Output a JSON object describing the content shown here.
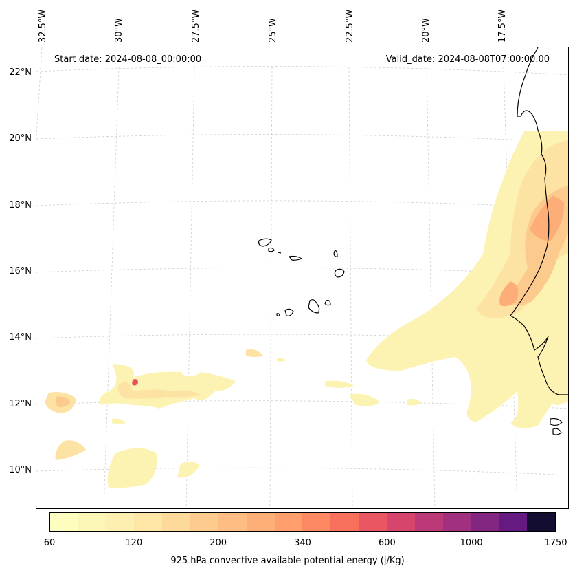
{
  "map": {
    "start_date": "Start date: 2024-08-08_00:00:00",
    "valid_date": "Valid_date: 2024-08-08T07:00:00.00",
    "lon_labels": [
      "32.5°W",
      "30°W",
      "27.5°W",
      "25°W",
      "22.5°W",
      "20°W",
      "17.5°W"
    ],
    "lat_labels": [
      "22°N",
      "20°N",
      "18°N",
      "16°N",
      "14°N",
      "12°N",
      "10°N"
    ],
    "colors": {
      "coastline": "#000000",
      "gridline": "#cccccc"
    }
  },
  "colorbar": {
    "title": "925 hPa convective available potential energy (j/Kg)",
    "tick_labels": [
      "60",
      "120",
      "200",
      "340",
      "600",
      "1000",
      "1750"
    ],
    "colors": [
      "#fcfdbf",
      "#fcf6b6",
      "#fdefaf",
      "#fde6a6",
      "#fdd99a",
      "#fecb8e",
      "#febd82",
      "#feaf77",
      "#fe9f6d",
      "#fc8961",
      "#f7705c",
      "#ea5661",
      "#d6456c",
      "#bc3978",
      "#a1307e",
      "#832681",
      "#641a80",
      "#120d31"
    ]
  },
  "chart_data": {
    "type": "heatmap",
    "title": "",
    "variable": "925 hPa convective available potential energy (j/Kg)",
    "levels": [
      60,
      120,
      200,
      340,
      600,
      1000,
      1750
    ],
    "lon_range": [
      "32.5°W",
      "17.5°W"
    ],
    "lat_range": [
      "10°N",
      "22°N"
    ]
  }
}
